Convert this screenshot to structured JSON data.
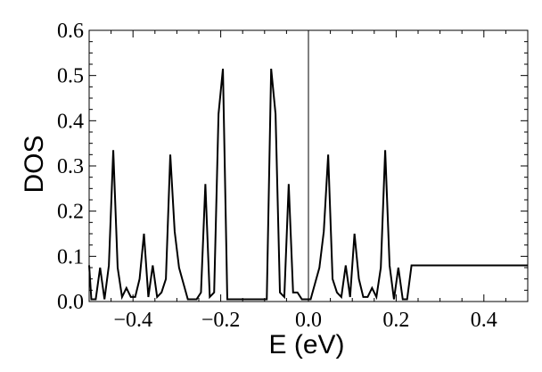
{
  "chart_data": {
    "type": "line",
    "title": "",
    "xlabel": "E (eV)",
    "ylabel": "DOS",
    "xlim": [
      -0.5,
      0.5
    ],
    "ylim": [
      0,
      0.6
    ],
    "grid": false,
    "legend": "none",
    "line_color": "#000000",
    "zero_line": 0.0,
    "x_ticks": [
      -0.4,
      -0.2,
      0.0,
      0.2,
      0.4
    ],
    "x_tick_labels": [
      "-0.4",
      "-0.2",
      "0.0",
      "0.2",
      "0.4"
    ],
    "y_ticks": [
      0,
      0.1,
      0.2,
      0.3,
      0.4,
      0.5,
      0.6
    ],
    "y_tick_labels": [
      "0.0",
      "0.1",
      "0.2",
      "0.3",
      "0.4",
      "0.5",
      "0.6"
    ],
    "series": [
      {
        "x": [
          -0.5,
          -0.495,
          -0.485,
          -0.475,
          -0.465,
          -0.455,
          -0.445,
          -0.435,
          -0.425,
          -0.415,
          -0.405,
          -0.395,
          -0.385,
          -0.375,
          -0.365,
          -0.355,
          -0.345,
          -0.335,
          -0.325,
          -0.315,
          -0.305,
          -0.295,
          -0.285,
          -0.275,
          -0.265,
          -0.255,
          -0.245,
          -0.235,
          -0.225,
          -0.215,
          -0.205,
          -0.195,
          -0.185,
          -0.175,
          -0.165,
          -0.155,
          -0.145,
          -0.135,
          -0.125,
          -0.115,
          -0.105,
          -0.095,
          -0.085,
          -0.075,
          -0.065,
          -0.055,
          -0.045,
          -0.035,
          -0.025,
          -0.015,
          -0.005,
          0.005,
          0.015,
          0.025,
          0.035,
          0.045,
          0.055,
          0.065,
          0.075,
          0.085,
          0.095,
          0.105,
          0.115,
          0.125,
          0.135,
          0.145,
          0.155,
          0.165,
          0.175,
          0.185,
          0.195,
          0.205,
          0.215,
          0.225,
          0.235,
          0.245,
          0.255,
          0.265,
          0.275,
          0.285,
          0.295,
          0.305,
          0.315,
          0.325,
          0.335,
          0.345,
          0.355,
          0.365,
          0.375,
          0.385,
          0.395,
          0.405,
          0.415,
          0.425,
          0.435,
          0.445,
          0.455,
          0.465,
          0.475,
          0.485,
          0.495,
          0.5
        ],
        "y": [
          0.08,
          0.005,
          0.005,
          0.075,
          0.005,
          0.08,
          0.335,
          0.075,
          0.01,
          0.03,
          0.01,
          0.01,
          0.05,
          0.15,
          0.01,
          0.08,
          0.01,
          0.02,
          0.05,
          0.325,
          0.155,
          0.075,
          0.04,
          0.005,
          0.005,
          0.005,
          0.02,
          0.26,
          0.01,
          0.02,
          0.415,
          0.515,
          0.005,
          0.005,
          0.005,
          0.005,
          0.005,
          0.005,
          0.005,
          0.005,
          0.005,
          0.005,
          0.515,
          0.415,
          0.02,
          0.01,
          0.26,
          0.02,
          0.02,
          0.005,
          0.005,
          0.005,
          0.04,
          0.075,
          0.155,
          0.325,
          0.05,
          0.02,
          0.01,
          0.08,
          0.01,
          0.15,
          0.05,
          0.01,
          0.01,
          0.03,
          0.01,
          0.075,
          0.335,
          0.08,
          0.005,
          0.075,
          0.005,
          0.005,
          0.08,
          0.08,
          0.08,
          0.08,
          0.08,
          0.08,
          0.08,
          0.08,
          0.08,
          0.08,
          0.08,
          0.08,
          0.08,
          0.08,
          0.08,
          0.08,
          0.08,
          0.08,
          0.08,
          0.08,
          0.08,
          0.08,
          0.08,
          0.08,
          0.08,
          0.08,
          0.08,
          0.08
        ]
      }
    ]
  }
}
